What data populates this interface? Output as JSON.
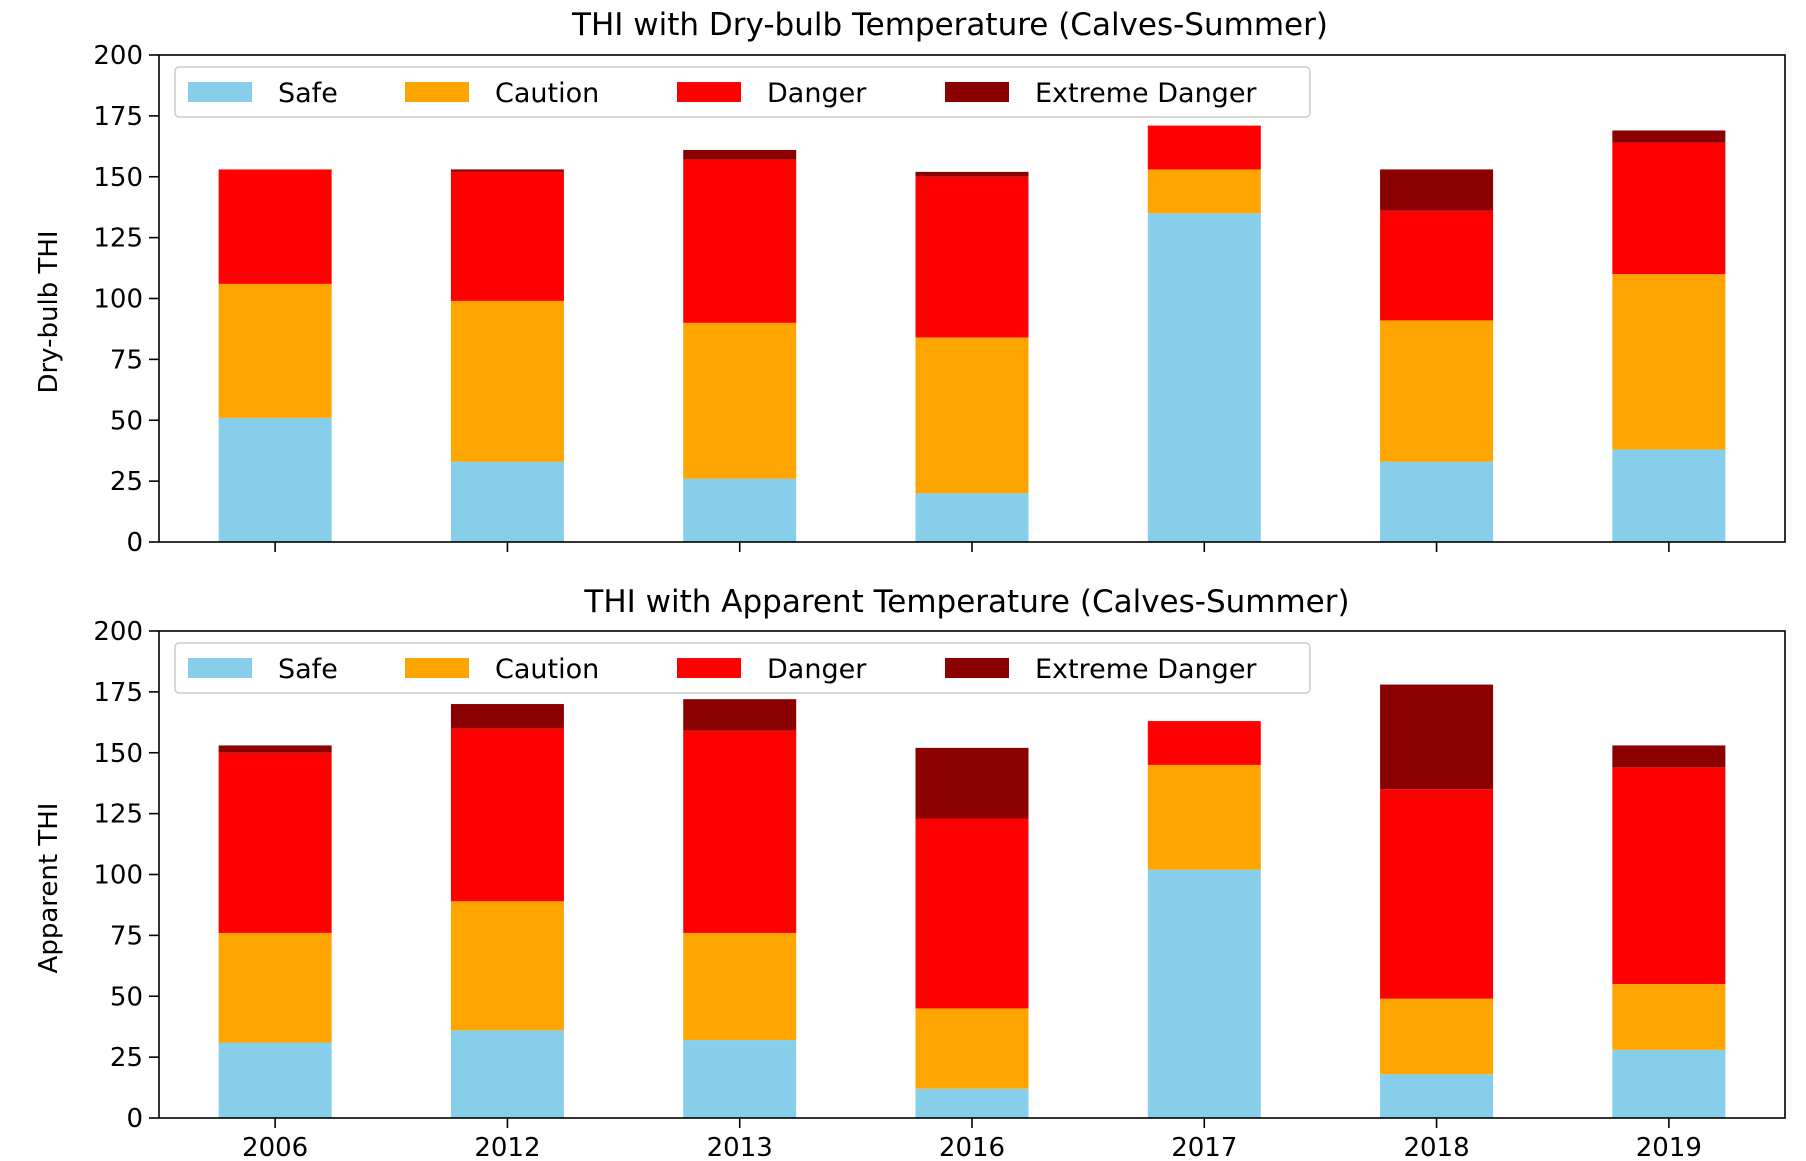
{
  "chart_data": [
    {
      "type": "bar",
      "stacked": true,
      "title": "THI with Dry-bulb Temperature (Calves-Summer)",
      "xlabel": "",
      "ylabel": "Dry-bulb THI",
      "ylim": [
        0,
        200
      ],
      "yticks": [
        "0",
        "25",
        "50",
        "75",
        "100",
        "125",
        "150",
        "175",
        "200"
      ],
      "categories": [
        "2006",
        "2012",
        "2013",
        "2016",
        "2017",
        "2018",
        "2019"
      ],
      "show_x_tick_labels": false,
      "legend": {
        "placement": "top-left",
        "ncol": 4
      },
      "series": [
        {
          "name": "Safe",
          "color": "#87ceeb",
          "values": [
            51,
            33,
            26,
            20,
            135,
            33,
            38
          ]
        },
        {
          "name": "Caution",
          "color": "#ffa500",
          "values": [
            55,
            66,
            64,
            64,
            18,
            58,
            72
          ]
        },
        {
          "name": "Danger",
          "color": "#ff0000",
          "values": [
            47,
            53,
            67,
            66,
            18,
            45,
            54
          ]
        },
        {
          "name": "Extreme Danger",
          "color": "#8b0000",
          "values": [
            0,
            1,
            4,
            2,
            0,
            17,
            5
          ]
        }
      ]
    },
    {
      "type": "bar",
      "stacked": true,
      "title": "THI with Apparent Temperature (Calves-Summer)",
      "xlabel": "",
      "ylabel": "Apparent THI",
      "ylim": [
        0,
        200
      ],
      "yticks": [
        "0",
        "25",
        "50",
        "75",
        "100",
        "125",
        "150",
        "175",
        "200"
      ],
      "categories": [
        "2006",
        "2012",
        "2013",
        "2016",
        "2017",
        "2018",
        "2019"
      ],
      "show_x_tick_labels": true,
      "legend": {
        "placement": "top-left",
        "ncol": 4
      },
      "series": [
        {
          "name": "Safe",
          "color": "#87ceeb",
          "values": [
            31,
            36,
            32,
            12,
            102,
            18,
            28
          ]
        },
        {
          "name": "Caution",
          "color": "#ffa500",
          "values": [
            45,
            53,
            44,
            33,
            43,
            31,
            27
          ]
        },
        {
          "name": "Danger",
          "color": "#ff0000",
          "values": [
            74,
            71,
            83,
            78,
            18,
            86,
            89
          ]
        },
        {
          "name": "Extreme Danger",
          "color": "#8b0000",
          "values": [
            3,
            10,
            13,
            29,
            0,
            43,
            9
          ]
        }
      ]
    }
  ]
}
